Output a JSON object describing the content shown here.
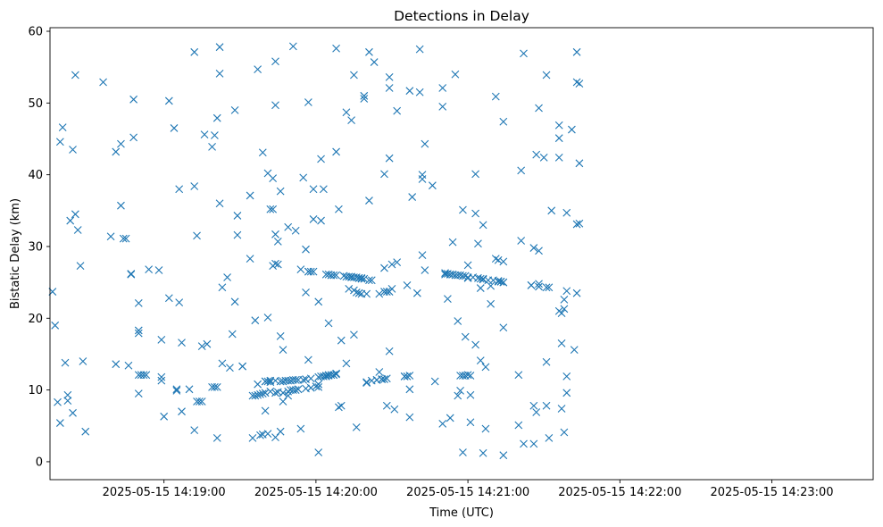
{
  "chart_data": {
    "type": "scatter",
    "title": "Detections in Delay",
    "xlabel": "Time (UTC)",
    "ylabel": "Bistatic Delay (km)",
    "marker": "x",
    "color": "#1f77b4",
    "grid": false,
    "legend": "none",
    "xlim": [
      "2025-05-15 14:18:15",
      "2025-05-15 14:23:40"
    ],
    "ylim": [
      -2.5,
      60.5
    ],
    "xticks": [
      "2025-05-15 14:19:00",
      "2025-05-15 14:20:00",
      "2025-05-15 14:21:00",
      "2025-05-15 14:22:00",
      "2025-05-15 14:23:00"
    ],
    "yticks": [
      0,
      10,
      20,
      30,
      40,
      50,
      60
    ],
    "points": [
      [
        "14:18:16",
        23.7
      ],
      [
        "14:18:17",
        19
      ],
      [
        "14:18:18",
        8.3
      ],
      [
        "14:18:19",
        44.6
      ],
      [
        "14:18:19",
        5.4
      ],
      [
        "14:18:20",
        46.6
      ],
      [
        "14:18:21",
        13.8
      ],
      [
        "14:18:22",
        8.5
      ],
      [
        "14:18:22",
        9.3
      ],
      [
        "14:18:23",
        33.6
      ],
      [
        "14:18:24",
        43.5
      ],
      [
        "14:18:24",
        6.8
      ],
      [
        "14:18:25",
        34.5
      ],
      [
        "14:18:25",
        53.9
      ],
      [
        "14:18:26",
        32.3
      ],
      [
        "14:18:27",
        27.3
      ],
      [
        "14:18:28",
        14
      ],
      [
        "14:18:29",
        4.2
      ],
      [
        "14:18:36",
        52.9
      ],
      [
        "14:18:39",
        31.4
      ],
      [
        "14:18:41",
        13.6
      ],
      [
        "14:18:41",
        43.2
      ],
      [
        "14:18:43",
        35.7
      ],
      [
        "14:18:43",
        44.3
      ],
      [
        "14:18:44",
        31.1
      ],
      [
        "14:18:45",
        31.1
      ],
      [
        "14:18:46",
        13.4
      ],
      [
        "14:18:47",
        26.2
      ],
      [
        "14:18:47",
        26.1
      ],
      [
        "14:18:48",
        45.2
      ],
      [
        "14:18:48",
        50.5
      ],
      [
        "14:18:50",
        18.3
      ],
      [
        "14:18:50",
        17.9
      ],
      [
        "14:18:50",
        22.1
      ],
      [
        "14:18:50",
        9.5
      ],
      [
        "14:18:50",
        12.1
      ],
      [
        "14:18:51",
        12.1
      ],
      [
        "14:18:52",
        12.1
      ],
      [
        "14:18:53",
        12.1
      ],
      [
        "14:18:54",
        26.8
      ],
      [
        "14:18:58",
        26.7
      ],
      [
        "14:18:59",
        11.8
      ],
      [
        "14:18:59",
        11.3
      ],
      [
        "14:18:59",
        17
      ],
      [
        "14:19:00",
        6.3
      ],
      [
        "14:19:02",
        50.3
      ],
      [
        "14:19:02",
        22.8
      ],
      [
        "14:19:04",
        46.5
      ],
      [
        "14:19:05",
        10.1
      ],
      [
        "14:19:05",
        9.9
      ],
      [
        "14:19:06",
        22.2
      ],
      [
        "14:19:06",
        38
      ],
      [
        "14:19:07",
        7
      ],
      [
        "14:19:07",
        16.6
      ],
      [
        "14:19:10",
        10.1
      ],
      [
        "14:19:12",
        38.4
      ],
      [
        "14:19:12",
        57.1
      ],
      [
        "14:19:12",
        4.4
      ],
      [
        "14:19:13",
        8.4
      ],
      [
        "14:19:13",
        31.5
      ],
      [
        "14:19:14",
        8.4
      ],
      [
        "14:19:15",
        8.4
      ],
      [
        "14:19:15",
        16.1
      ],
      [
        "14:19:16",
        45.6
      ],
      [
        "14:19:17",
        16.4
      ],
      [
        "14:19:19",
        43.9
      ],
      [
        "14:19:19",
        10.4
      ],
      [
        "14:19:20",
        45.5
      ],
      [
        "14:19:20",
        10.4
      ],
      [
        "14:19:21",
        10.4
      ],
      [
        "14:19:21",
        3.3
      ],
      [
        "14:19:21",
        47.9
      ],
      [
        "14:19:22",
        54.1
      ],
      [
        "14:19:22",
        57.8
      ],
      [
        "14:19:22",
        36
      ],
      [
        "14:19:23",
        13.7
      ],
      [
        "14:19:23",
        24.3
      ],
      [
        "14:19:25",
        25.7
      ],
      [
        "14:19:26",
        13.1
      ],
      [
        "14:19:27",
        17.8
      ],
      [
        "14:19:28",
        22.3
      ],
      [
        "14:19:28",
        49
      ],
      [
        "14:19:29",
        34.3
      ],
      [
        "14:19:29",
        31.6
      ],
      [
        "14:19:31",
        13.3
      ],
      [
        "14:19:31",
        13.3
      ],
      [
        "14:19:34",
        37.1
      ],
      [
        "14:19:34",
        28.3
      ],
      [
        "14:19:35",
        9.2
      ],
      [
        "14:19:35",
        3.3
      ],
      [
        "14:19:36",
        19.7
      ],
      [
        "14:19:36",
        9.2
      ],
      [
        "14:19:37",
        54.7
      ],
      [
        "14:19:37",
        10.8
      ],
      [
        "14:19:37",
        9.3
      ],
      [
        "14:19:38",
        3.7
      ],
      [
        "14:19:38",
        9.4
      ],
      [
        "14:19:39",
        3.8
      ],
      [
        "14:19:39",
        9.5
      ],
      [
        "14:19:39",
        43.1
      ],
      [
        "14:19:40",
        9.6
      ],
      [
        "14:19:40",
        11.2
      ],
      [
        "14:19:40",
        11.2
      ],
      [
        "14:19:40",
        7.1
      ],
      [
        "14:19:41",
        40.2
      ],
      [
        "14:19:41",
        20.1
      ],
      [
        "14:19:41",
        11.2
      ],
      [
        "14:19:41",
        3.9
      ],
      [
        "14:19:42",
        35.2
      ],
      [
        "14:19:42",
        11.3
      ],
      [
        "14:19:42",
        11.1
      ],
      [
        "14:19:42",
        9.8
      ],
      [
        "14:19:43",
        39.5
      ],
      [
        "14:19:43",
        35.2
      ],
      [
        "14:19:43",
        27.3
      ],
      [
        "14:19:44",
        55.8
      ],
      [
        "14:19:44",
        11.3
      ],
      [
        "14:19:44",
        27.6
      ],
      [
        "14:19:44",
        9.6
      ],
      [
        "14:19:44",
        3.4
      ],
      [
        "14:19:44",
        31.7
      ],
      [
        "14:19:44",
        49.7
      ],
      [
        "14:19:45",
        30.7
      ],
      [
        "14:19:45",
        27.5
      ],
      [
        "14:19:45",
        9.7
      ],
      [
        "14:19:46",
        11.2
      ],
      [
        "14:19:46",
        37.7
      ],
      [
        "14:19:46",
        17.5
      ],
      [
        "14:19:46",
        4.2
      ],
      [
        "14:19:47",
        11.2
      ],
      [
        "14:19:47",
        9.6
      ],
      [
        "14:19:47",
        15.6
      ],
      [
        "14:19:47",
        8.4
      ],
      [
        "14:19:48",
        11.3
      ],
      [
        "14:19:49",
        11.3
      ],
      [
        "14:19:49",
        32.7
      ],
      [
        "14:19:49",
        9.2
      ],
      [
        "14:19:49",
        9.8
      ],
      [
        "14:19:50",
        11.3
      ],
      [
        "14:19:50",
        10
      ],
      [
        "14:19:51",
        11.4
      ],
      [
        "14:19:51",
        57.9
      ],
      [
        "14:19:51",
        10
      ],
      [
        "14:19:52",
        32.2
      ],
      [
        "14:19:52",
        11.4
      ],
      [
        "14:19:52",
        10
      ],
      [
        "14:19:53",
        11.4
      ],
      [
        "14:19:53",
        10.1
      ],
      [
        "14:19:54",
        4.6
      ],
      [
        "14:19:54",
        26.8
      ],
      [
        "14:19:55",
        39.6
      ],
      [
        "14:19:55",
        11.4
      ],
      [
        "14:19:56",
        29.6
      ],
      [
        "14:19:56",
        23.6
      ],
      [
        "14:19:56",
        11.5
      ],
      [
        "14:19:56",
        10.2
      ],
      [
        "14:19:57",
        14.2
      ],
      [
        "14:19:57",
        26.5
      ],
      [
        "14:19:57",
        50.1
      ],
      [
        "14:19:57",
        26.5
      ],
      [
        "14:19:58",
        26.5
      ],
      [
        "14:19:58",
        11.6
      ],
      [
        "14:19:58",
        10.3
      ],
      [
        "14:19:59",
        26.5
      ],
      [
        "14:19:59",
        33.8
      ],
      [
        "14:19:59",
        38
      ],
      [
        "14:20:00",
        10.5
      ],
      [
        "14:20:01",
        10.4
      ],
      [
        "14:20:01",
        1.3
      ],
      [
        "14:20:01",
        22.3
      ],
      [
        "14:20:01",
        11.8
      ],
      [
        "14:20:01",
        10.8
      ],
      [
        "14:20:02",
        42.2
      ],
      [
        "14:20:02",
        11.9
      ],
      [
        "14:20:02",
        33.6
      ],
      [
        "14:20:03",
        11.9
      ],
      [
        "14:20:03",
        38
      ],
      [
        "14:20:04",
        26.1
      ],
      [
        "14:20:04",
        11.9
      ],
      [
        "14:20:04",
        12
      ],
      [
        "14:20:05",
        12
      ],
      [
        "14:20:05",
        26.1
      ],
      [
        "14:20:05",
        12.1
      ],
      [
        "14:20:05",
        19.3
      ],
      [
        "14:20:06",
        26
      ],
      [
        "14:20:06",
        12.1
      ],
      [
        "14:20:07",
        26
      ],
      [
        "14:20:07",
        12.1
      ],
      [
        "14:20:07",
        12.1
      ],
      [
        "14:20:08",
        26
      ],
      [
        "14:20:08",
        12.2
      ],
      [
        "14:20:08",
        57.6
      ],
      [
        "14:20:08",
        43.2
      ],
      [
        "14:20:08",
        12.3
      ],
      [
        "14:20:09",
        35.2
      ],
      [
        "14:20:09",
        7.6
      ],
      [
        "14:20:10",
        16.9
      ],
      [
        "14:20:10",
        7.8
      ],
      [
        "14:20:11",
        25.9
      ],
      [
        "14:20:12",
        25.8
      ],
      [
        "14:20:12",
        48.7
      ],
      [
        "14:20:12",
        13.7
      ],
      [
        "14:20:13",
        25.8
      ],
      [
        "14:20:13",
        24.1
      ],
      [
        "14:20:14",
        25.8
      ],
      [
        "14:20:14",
        47.6
      ],
      [
        "14:20:14",
        25.7
      ],
      [
        "14:20:15",
        25.7
      ],
      [
        "14:20:15",
        23.9
      ],
      [
        "14:20:15",
        53.9
      ],
      [
        "14:20:15",
        17.7
      ],
      [
        "14:20:16",
        25.7
      ],
      [
        "14:20:16",
        23.6
      ],
      [
        "14:20:16",
        4.8
      ],
      [
        "14:20:17",
        25.6
      ],
      [
        "14:20:17",
        23.5
      ],
      [
        "14:20:17",
        25.6
      ],
      [
        "14:20:18",
        25.6
      ],
      [
        "14:20:18",
        23.4
      ],
      [
        "14:20:18",
        25.5
      ],
      [
        "14:20:19",
        25.5
      ],
      [
        "14:20:19",
        51
      ],
      [
        "14:20:19",
        50.6
      ],
      [
        "14:20:20",
        11
      ],
      [
        "14:20:20",
        11.1
      ],
      [
        "14:20:20",
        23.4
      ],
      [
        "14:20:21",
        57.1
      ],
      [
        "14:20:21",
        36.4
      ],
      [
        "14:20:21",
        25.3
      ],
      [
        "14:20:22",
        25.3
      ],
      [
        "14:20:22",
        11.3
      ],
      [
        "14:20:23",
        55.7
      ],
      [
        "14:20:24",
        11.4
      ],
      [
        "14:20:24",
        11.4
      ],
      [
        "14:20:25",
        23.4
      ],
      [
        "14:20:25",
        12.5
      ],
      [
        "14:20:26",
        11.5
      ],
      [
        "14:20:26",
        11.5
      ],
      [
        "14:20:27",
        23.7
      ],
      [
        "14:20:27",
        40.1
      ],
      [
        "14:20:27",
        11.5
      ],
      [
        "14:20:27",
        27
      ],
      [
        "14:20:28",
        23.7
      ],
      [
        "14:20:28",
        11.6
      ],
      [
        "14:20:28",
        7.8
      ],
      [
        "14:20:29",
        23.7
      ],
      [
        "14:20:29",
        53.6
      ],
      [
        "14:20:29",
        52.1
      ],
      [
        "14:20:29",
        42.3
      ],
      [
        "14:20:29",
        15.4
      ],
      [
        "14:20:30",
        27.5
      ],
      [
        "14:20:30",
        24.1
      ],
      [
        "14:20:31",
        7.3
      ],
      [
        "14:20:32",
        27.8
      ],
      [
        "14:20:32",
        48.9
      ],
      [
        "14:20:35",
        11.9
      ],
      [
        "14:20:35",
        11.9
      ],
      [
        "14:20:36",
        11.9
      ],
      [
        "14:20:36",
        24.6
      ],
      [
        "14:20:37",
        12
      ],
      [
        "14:20:37",
        51.7
      ],
      [
        "14:20:37",
        6.2
      ],
      [
        "14:20:37",
        10.1
      ],
      [
        "14:20:38",
        36.9
      ],
      [
        "14:20:40",
        23.5
      ],
      [
        "14:20:41",
        57.5
      ],
      [
        "14:20:41",
        51.5
      ],
      [
        "14:20:42",
        39.4
      ],
      [
        "14:20:42",
        40
      ],
      [
        "14:20:42",
        28.8
      ],
      [
        "14:20:43",
        44.3
      ],
      [
        "14:20:43",
        26.7
      ],
      [
        "14:20:46",
        38.5
      ],
      [
        "14:20:47",
        11.2
      ],
      [
        "14:20:50",
        5.3
      ],
      [
        "14:20:50",
        52.1
      ],
      [
        "14:20:50",
        49.5
      ],
      [
        "14:20:51",
        26.3
      ],
      [
        "14:20:51",
        26.1
      ],
      [
        "14:20:52",
        26.2
      ],
      [
        "14:20:52",
        22.7
      ],
      [
        "14:20:53",
        26.1
      ],
      [
        "14:20:53",
        6.1
      ],
      [
        "14:20:53",
        26.1
      ],
      [
        "14:20:54",
        26.1
      ],
      [
        "14:20:54",
        30.6
      ],
      [
        "14:20:55",
        26
      ],
      [
        "14:20:55",
        54
      ],
      [
        "14:20:56",
        26
      ],
      [
        "14:20:56",
        19.6
      ],
      [
        "14:20:56",
        9.2
      ],
      [
        "14:20:57",
        26
      ],
      [
        "14:20:57",
        9.9
      ],
      [
        "14:20:57",
        12
      ],
      [
        "14:20:58",
        25.9
      ],
      [
        "14:20:58",
        12
      ],
      [
        "14:20:58",
        1.3
      ],
      [
        "14:20:58",
        35.1
      ],
      [
        "14:20:59",
        25.9
      ],
      [
        "14:20:59",
        12
      ],
      [
        "14:20:59",
        17.4
      ],
      [
        "14:21:00",
        12.1
      ],
      [
        "14:21:00",
        25.7
      ],
      [
        "14:21:00",
        25.6
      ],
      [
        "14:21:00",
        27.4
      ],
      [
        "14:21:01",
        12
      ],
      [
        "14:21:01",
        5.5
      ],
      [
        "14:21:01",
        9.3
      ],
      [
        "14:21:02",
        25.7
      ],
      [
        "14:21:03",
        40.1
      ],
      [
        "14:21:03",
        34.6
      ],
      [
        "14:21:03",
        16.3
      ],
      [
        "14:21:04",
        30.4
      ],
      [
        "14:21:04",
        25.6
      ],
      [
        "14:21:05",
        25.5
      ],
      [
        "14:21:05",
        14.1
      ],
      [
        "14:21:05",
        24.2
      ],
      [
        "14:21:06",
        25.5
      ],
      [
        "14:21:06",
        1.2
      ],
      [
        "14:21:06",
        33
      ],
      [
        "14:21:06",
        25.4
      ],
      [
        "14:21:07",
        13.2
      ],
      [
        "14:21:07",
        4.6
      ],
      [
        "14:21:08",
        25.3
      ],
      [
        "14:21:09",
        22
      ],
      [
        "14:21:09",
        24.5
      ],
      [
        "14:21:10",
        25.3
      ],
      [
        "14:21:11",
        50.9
      ],
      [
        "14:21:11",
        28.3
      ],
      [
        "14:21:12",
        28.1
      ],
      [
        "14:21:12",
        25.2
      ],
      [
        "14:21:12",
        25.1
      ],
      [
        "14:21:13",
        25.1
      ],
      [
        "14:21:13",
        25.1
      ],
      [
        "14:21:14",
        25
      ],
      [
        "14:21:14",
        25
      ],
      [
        "14:21:14",
        0.9
      ],
      [
        "14:21:14",
        27.9
      ],
      [
        "14:21:14",
        18.7
      ],
      [
        "14:21:14",
        47.4
      ],
      [
        "14:21:20",
        12.1
      ],
      [
        "14:21:20",
        5.1
      ],
      [
        "14:21:21",
        30.8
      ],
      [
        "14:21:21",
        40.6
      ],
      [
        "14:21:22",
        2.5
      ],
      [
        "14:21:22",
        56.9
      ],
      [
        "14:21:25",
        24.6
      ],
      [
        "14:21:25",
        24.6
      ],
      [
        "14:21:26",
        7.8
      ],
      [
        "14:21:26",
        2.5
      ],
      [
        "14:21:26",
        29.8
      ],
      [
        "14:21:27",
        42.8
      ],
      [
        "14:21:27",
        6.9
      ],
      [
        "14:21:28",
        24.8
      ],
      [
        "14:21:28",
        49.3
      ],
      [
        "14:21:28",
        29.4
      ],
      [
        "14:21:28",
        24.4
      ],
      [
        "14:21:30",
        42.4
      ],
      [
        "14:21:31",
        24.3
      ],
      [
        "14:21:31",
        13.9
      ],
      [
        "14:21:31",
        7.8
      ],
      [
        "14:21:31",
        53.9
      ],
      [
        "14:21:32",
        3.3
      ],
      [
        "14:21:32",
        24.3
      ],
      [
        "14:21:33",
        35
      ],
      [
        "14:21:36",
        46.9
      ],
      [
        "14:21:36",
        45.1
      ],
      [
        "14:21:36",
        42.4
      ],
      [
        "14:21:36",
        21
      ],
      [
        "14:21:37",
        20.7
      ],
      [
        "14:21:37",
        16.5
      ],
      [
        "14:21:37",
        7.4
      ],
      [
        "14:21:38",
        21.3
      ],
      [
        "14:21:38",
        4.1
      ],
      [
        "14:21:38",
        22.6
      ],
      [
        "14:21:39",
        11.9
      ],
      [
        "14:21:39",
        9.6
      ],
      [
        "14:21:39",
        34.7
      ],
      [
        "14:21:39",
        23.8
      ],
      [
        "14:21:41",
        46.3
      ],
      [
        "14:21:42",
        15.6
      ],
      [
        "14:21:43",
        57.1
      ],
      [
        "14:21:43",
        52.9
      ],
      [
        "14:21:43",
        23.5
      ],
      [
        "14:21:43",
        33.1
      ],
      [
        "14:21:44",
        52.7
      ],
      [
        "14:21:44",
        33.2
      ],
      [
        "14:21:44",
        41.6
      ]
    ]
  }
}
